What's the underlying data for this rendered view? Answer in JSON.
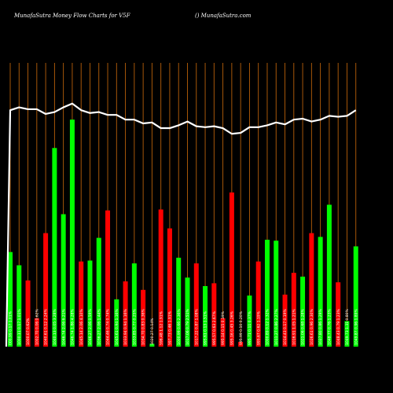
{
  "header": {
    "left": "MunafaSutra  Money Flow  Charts for V5F",
    "right": "() MunafaSutra.com"
  },
  "colors": {
    "background": "#000000",
    "grid": "#b8600a",
    "up": "#00ff00",
    "down": "#ff0000",
    "line": "#ffffff"
  },
  "chart_data": {
    "type": "bar",
    "bars": [
      {
        "label": "000.99 0.17 1.01%",
        "value": 100,
        "color": "up"
      },
      {
        "label": "1000.11 0.17 1.01%",
        "value": 86,
        "color": "up"
      },
      {
        "label": "1000.07 0.62%",
        "value": 70,
        "color": "down"
      },
      {
        "label": "1002.70 0.06 0.62%",
        "value": 30,
        "color": "down"
      },
      {
        "label": "1040.61 0.12 2.24%",
        "value": 120,
        "color": "down"
      },
      {
        "label": "1040.13 0.05 3.28%",
        "value": 210,
        "color": "up"
      },
      {
        "label": "1046.74 2.06 6.21%",
        "value": 140,
        "color": "up"
      },
      {
        "label": "1046.74 1.86 4.28%",
        "value": 240,
        "color": "up"
      },
      {
        "label": "1045.14 2.06 4.10%",
        "value": 90,
        "color": "down"
      },
      {
        "label": "1046.27 2.06 0.59%",
        "value": 91,
        "color": "up"
      },
      {
        "label": "1036.27 2.06 1.44%",
        "value": 115,
        "color": "up"
      },
      {
        "label": "1044.46 0.74 0.74%",
        "value": 144,
        "color": "down"
      },
      {
        "label": "1045.61 0.94 1.16%",
        "value": 50,
        "color": "up"
      },
      {
        "label": "1033.94 0.94 1.16%",
        "value": 69,
        "color": "down"
      },
      {
        "label": "1033.85 0.77 0.25%",
        "value": 88,
        "color": "up"
      },
      {
        "label": "1034.70 0.83 0.36%",
        "value": 60,
        "color": "down"
      },
      {
        "label": "1020.27 0.14%",
        "value": 3,
        "color": "up"
      },
      {
        "label": "596.48 1.12 1.91%",
        "value": 145,
        "color": "down"
      },
      {
        "label": "597.73 0.46 1.91%",
        "value": 125,
        "color": "down"
      },
      {
        "label": "1000.99 0.66 2.36%",
        "value": 94,
        "color": "up"
      },
      {
        "label": "1017.06 0.79 2.51%",
        "value": 73,
        "color": "up"
      },
      {
        "label": "1017.22 0.87 1.08%",
        "value": 88,
        "color": "down"
      },
      {
        "label": "995.61 0.13 1.51%",
        "value": 64,
        "color": "up"
      },
      {
        "label": "995.57 0.63 2.67%",
        "value": 67,
        "color": "down"
      },
      {
        "label": "995.14 0.15 0.19%",
        "value": 30,
        "color": "down"
      },
      {
        "label": "995.16 0.45 3.26%",
        "value": 163,
        "color": "down"
      },
      {
        "label": "995.99 0.10 0.20%",
        "value": 5,
        "color": "down"
      },
      {
        "label": "995.71 0.11 0.37%",
        "value": 54,
        "color": "up"
      },
      {
        "label": "995.67 0.62 1.19%",
        "value": 90,
        "color": "down"
      },
      {
        "label": "1000.89 0.12 1.32%",
        "value": 113,
        "color": "up"
      },
      {
        "label": "1011.27 0.86 2.27%",
        "value": 112,
        "color": "up"
      },
      {
        "label": "1014.43 0.17 0.19%",
        "value": 55,
        "color": "down"
      },
      {
        "label": "1016.91 1.05 1.21%",
        "value": 78,
        "color": "down"
      },
      {
        "label": "1021.06 0.68 1.28%",
        "value": 74,
        "color": "up"
      },
      {
        "label": "1026.61 0.96 2.30%",
        "value": 120,
        "color": "down"
      },
      {
        "label": "1027.80 0.86 1.29%",
        "value": 116,
        "color": "up"
      },
      {
        "label": "1048.77 0.76 1.23%",
        "value": 150,
        "color": "up"
      },
      {
        "label": "1048.43 0.79 1.23%",
        "value": 68,
        "color": "down"
      },
      {
        "label": "1049.73 1.31 0.80%",
        "value": 27,
        "color": "up"
      },
      {
        "label": "1049.87 0.96 1.89%",
        "value": 106,
        "color": "up"
      }
    ],
    "line": [
      250,
      253,
      251,
      251,
      246,
      248,
      253,
      257,
      250,
      247,
      248,
      245,
      245,
      240,
      240,
      236,
      237,
      231,
      231,
      234,
      238,
      233,
      232,
      233,
      231,
      225,
      226,
      232,
      232,
      234,
      237,
      235,
      240,
      241,
      238,
      240,
      244,
      243,
      244,
      250
    ],
    "ylim": [
      0,
      300
    ]
  }
}
